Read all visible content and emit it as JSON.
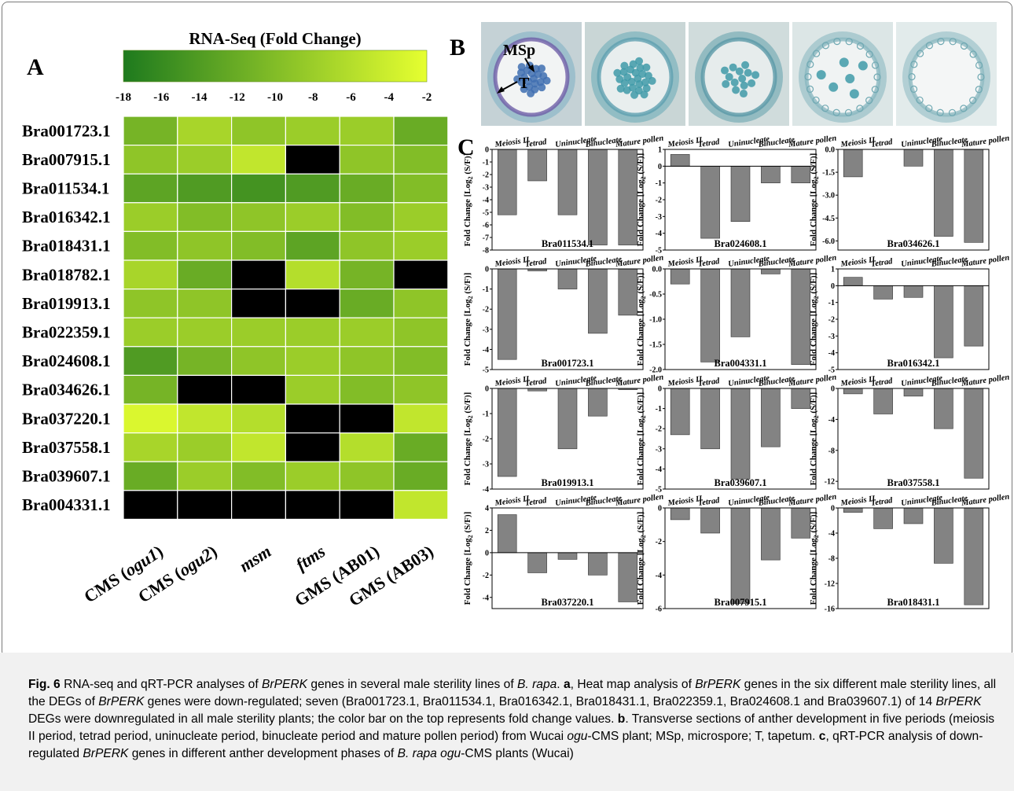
{
  "panel_labels": {
    "a": "A",
    "b": "B",
    "c": "C"
  },
  "colorbar": {
    "title": "RNA-Seq (Fold Change)",
    "low_color": "#1e7a1e",
    "high_color": "#e6ff30"
  },
  "micrographs": [
    {
      "annotations": [
        "MSp",
        "T"
      ]
    },
    {
      "annotations": []
    },
    {
      "annotations": []
    },
    {
      "annotations": []
    },
    {
      "annotations": []
    }
  ],
  "chart_data": [
    {
      "type": "heatmap",
      "title": "RNA-Seq (Fold Change)",
      "scale_ticks": [
        -18,
        -16,
        -14,
        -12,
        -10,
        -8,
        -6,
        -4,
        -2
      ],
      "range": [
        -18,
        -2
      ],
      "missing_color": "#000000",
      "rows": [
        "Bra001723.1",
        "Bra007915.1",
        "Bra011534.1",
        "Bra016342.1",
        "Bra018431.1",
        "Bra018782.1",
        "Bra019913.1",
        "Bra022359.1",
        "Bra024608.1",
        "Bra034626.1",
        "Bra037220.1",
        "Bra037558.1",
        "Bra039607.1",
        "Bra004331.1"
      ],
      "columns": [
        "CMS (ogu1)",
        "CMS (ogu2)",
        "msm",
        "ftms",
        "GMS (AB01)",
        "GMS (AB03)"
      ],
      "values": [
        [
          -11,
          -7,
          -9,
          -8,
          -8,
          -12
        ],
        [
          -9,
          -8,
          -5,
          null,
          -9,
          -10
        ],
        [
          -13,
          -14,
          -15,
          -14,
          -12,
          -10
        ],
        [
          -8,
          -10,
          -9,
          -8,
          -10,
          -8
        ],
        [
          -10,
          -9,
          -10,
          -13,
          -9,
          -8
        ],
        [
          -7,
          -12,
          null,
          -6,
          -11,
          null
        ],
        [
          -9,
          -9,
          null,
          null,
          -12,
          -9
        ],
        [
          -8,
          -8,
          -8,
          -8,
          -8,
          -9
        ],
        [
          -14,
          -11,
          -9,
          -8,
          -9,
          -10
        ],
        [
          -11,
          null,
          null,
          -8,
          -10,
          -9
        ],
        [
          -3,
          -5,
          -6,
          null,
          null,
          -5
        ],
        [
          -7,
          -8,
          -5,
          null,
          -6,
          -12
        ],
        [
          -12,
          -8,
          -10,
          -8,
          -9,
          -12
        ],
        [
          null,
          null,
          null,
          null,
          null,
          -5
        ]
      ]
    },
    {
      "type": "bar",
      "panels": [
        {
          "gene": "Bra011534.1",
          "ylim": [
            -8,
            0
          ],
          "ticks": [
            0,
            -1,
            -2,
            -3,
            -4,
            -5,
            -6,
            -7,
            -8
          ],
          "values": [
            -5.2,
            -2.5,
            -5.2,
            -7.6,
            -7.6
          ]
        },
        {
          "gene": "Bra024608.1",
          "ylim": [
            -5,
            1
          ],
          "ticks": [
            1,
            0,
            -1,
            -2,
            -3,
            -4,
            -5
          ],
          "values": [
            0.7,
            -4.3,
            -3.3,
            -1.0,
            -1.0
          ]
        },
        {
          "gene": "Bra034626.1",
          "ylim": [
            -6.6,
            0
          ],
          "ticks": [
            "0.0",
            "-1.5",
            "-3.0",
            "-4.5",
            "-6.0"
          ],
          "values": [
            -1.8,
            0,
            -1.1,
            -5.7,
            -6.1
          ]
        },
        {
          "gene": "Bra001723.1",
          "ylim": [
            -5,
            0
          ],
          "ticks": [
            0,
            -1,
            -2,
            -3,
            -4,
            -5
          ],
          "values": [
            -4.5,
            -0.1,
            -1.0,
            -3.2,
            -2.3
          ]
        },
        {
          "gene": "Bra004331.1",
          "ylim": [
            -2.0,
            0
          ],
          "ticks": [
            "0.0",
            "-0.5",
            "-1.0",
            "-1.5",
            "-2.0"
          ],
          "values": [
            -0.3,
            -1.85,
            -1.35,
            -0.1,
            -1.9
          ]
        },
        {
          "gene": "Bra016342.1",
          "ylim": [
            -5,
            1
          ],
          "ticks": [
            1,
            0,
            -1,
            -2,
            -3,
            -4,
            -5
          ],
          "values": [
            0.5,
            -0.8,
            -0.7,
            -4.3,
            -3.6
          ]
        },
        {
          "gene": "Bra019913.1",
          "ylim": [
            -4,
            0
          ],
          "ticks": [
            0,
            -1,
            -2,
            -3,
            -4
          ],
          "values": [
            -3.5,
            -0.1,
            -2.4,
            -1.1,
            -0.05
          ]
        },
        {
          "gene": "Bra039607.1",
          "ylim": [
            -5,
            0
          ],
          "ticks": [
            0,
            -1,
            -2,
            -3,
            -4,
            -5
          ],
          "values": [
            -2.3,
            -3.0,
            -4.5,
            -2.9,
            -1.0
          ]
        },
        {
          "gene": "Bra037558.1",
          "ylim": [
            -13,
            0
          ],
          "ticks": [
            0,
            -4,
            -8,
            -12
          ],
          "values": [
            -0.7,
            -3.3,
            -1.0,
            -5.2,
            -11.6
          ]
        },
        {
          "gene": "Bra037220.1",
          "ylim": [
            -5,
            4
          ],
          "ticks": [
            4,
            2,
            0,
            -2,
            -4
          ],
          "values": [
            3.4,
            -1.8,
            -0.6,
            -2.0,
            -4.4
          ]
        },
        {
          "gene": "Bra007915.1",
          "ylim": [
            -6,
            0
          ],
          "ticks": [
            0,
            -2,
            -4,
            -6
          ],
          "values": [
            -0.7,
            -1.5,
            -5.7,
            -3.1,
            -1.8
          ]
        },
        {
          "gene": "Bra018431.1",
          "ylim": [
            -16,
            0
          ],
          "ticks": [
            0,
            -4,
            -8,
            -12,
            -16
          ],
          "values": [
            -0.7,
            -3.3,
            -2.5,
            -8.8,
            -15.4
          ]
        }
      ],
      "categories": [
        "Meiosis II",
        "Tetrad",
        "Uninucleate",
        "Binucleate",
        "Mature pollen"
      ],
      "ylabel_main": "Fold Change [Log",
      "ylabel_sub": "2",
      "ylabel_tail": " (S/F)]",
      "bar_color": "#838383"
    }
  ],
  "caption": {
    "label": "Fig. 6",
    "html": "RNA-seq and qRT-PCR analyses of <i>BrPERK</i> genes in several male sterility lines of <i>B. rapa</i>. <b>a</b>, Heat map analysis of <i>BrPERK</i> genes in the six different male sterility lines, all the DEGs of <i>BrPERK</i> genes were down-regulated; seven (Bra001723.1, Bra011534.1, Bra016342.1, Bra018431.1, Bra022359.1, Bra024608.1 and Bra039607.1) of 14 <i>BrPERK</i> DEGs were downregulated in all male sterility plants; the color bar on the top represents fold change values. <b>b</b>. Transverse sections of anther development in five periods (meiosis II period, tetrad period, uninucleate period, binucleate period and mature pollen period) from Wucai <i>ogu</i>-CMS plant; MSp, microspore; T, tapetum. <b>c</b>, qRT-PCR analysis of down-regulated <i>BrPERK</i> genes in different anther development phases of <i>B. rapa ogu</i>-CMS plants (Wucai)"
  }
}
